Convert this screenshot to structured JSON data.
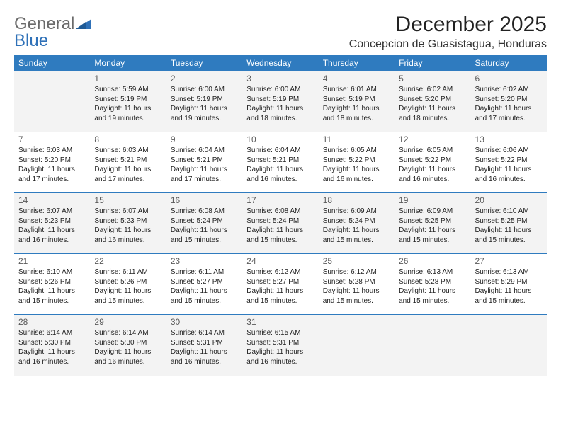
{
  "logo": {
    "part1": "General",
    "part2": "Blue"
  },
  "title": "December 2025",
  "location": "Concepcion de Guasistagua, Honduras",
  "colors": {
    "header_bg": "#2f7bbf",
    "header_text": "#ffffff",
    "row_alt_bg": "#f3f3f3",
    "border": "#2f7bbf",
    "logo_gray": "#6a6a6a",
    "logo_blue": "#2f71b8"
  },
  "day_headers": [
    "Sunday",
    "Monday",
    "Tuesday",
    "Wednesday",
    "Thursday",
    "Friday",
    "Saturday"
  ],
  "weeks": [
    [
      null,
      {
        "n": "1",
        "sunrise": "Sunrise: 5:59 AM",
        "sunset": "Sunset: 5:19 PM",
        "day": "Daylight: 11 hours and 19 minutes."
      },
      {
        "n": "2",
        "sunrise": "Sunrise: 6:00 AM",
        "sunset": "Sunset: 5:19 PM",
        "day": "Daylight: 11 hours and 19 minutes."
      },
      {
        "n": "3",
        "sunrise": "Sunrise: 6:00 AM",
        "sunset": "Sunset: 5:19 PM",
        "day": "Daylight: 11 hours and 18 minutes."
      },
      {
        "n": "4",
        "sunrise": "Sunrise: 6:01 AM",
        "sunset": "Sunset: 5:19 PM",
        "day": "Daylight: 11 hours and 18 minutes."
      },
      {
        "n": "5",
        "sunrise": "Sunrise: 6:02 AM",
        "sunset": "Sunset: 5:20 PM",
        "day": "Daylight: 11 hours and 18 minutes."
      },
      {
        "n": "6",
        "sunrise": "Sunrise: 6:02 AM",
        "sunset": "Sunset: 5:20 PM",
        "day": "Daylight: 11 hours and 17 minutes."
      }
    ],
    [
      {
        "n": "7",
        "sunrise": "Sunrise: 6:03 AM",
        "sunset": "Sunset: 5:20 PM",
        "day": "Daylight: 11 hours and 17 minutes."
      },
      {
        "n": "8",
        "sunrise": "Sunrise: 6:03 AM",
        "sunset": "Sunset: 5:21 PM",
        "day": "Daylight: 11 hours and 17 minutes."
      },
      {
        "n": "9",
        "sunrise": "Sunrise: 6:04 AM",
        "sunset": "Sunset: 5:21 PM",
        "day": "Daylight: 11 hours and 17 minutes."
      },
      {
        "n": "10",
        "sunrise": "Sunrise: 6:04 AM",
        "sunset": "Sunset: 5:21 PM",
        "day": "Daylight: 11 hours and 16 minutes."
      },
      {
        "n": "11",
        "sunrise": "Sunrise: 6:05 AM",
        "sunset": "Sunset: 5:22 PM",
        "day": "Daylight: 11 hours and 16 minutes."
      },
      {
        "n": "12",
        "sunrise": "Sunrise: 6:05 AM",
        "sunset": "Sunset: 5:22 PM",
        "day": "Daylight: 11 hours and 16 minutes."
      },
      {
        "n": "13",
        "sunrise": "Sunrise: 6:06 AM",
        "sunset": "Sunset: 5:22 PM",
        "day": "Daylight: 11 hours and 16 minutes."
      }
    ],
    [
      {
        "n": "14",
        "sunrise": "Sunrise: 6:07 AM",
        "sunset": "Sunset: 5:23 PM",
        "day": "Daylight: 11 hours and 16 minutes."
      },
      {
        "n": "15",
        "sunrise": "Sunrise: 6:07 AM",
        "sunset": "Sunset: 5:23 PM",
        "day": "Daylight: 11 hours and 16 minutes."
      },
      {
        "n": "16",
        "sunrise": "Sunrise: 6:08 AM",
        "sunset": "Sunset: 5:24 PM",
        "day": "Daylight: 11 hours and 15 minutes."
      },
      {
        "n": "17",
        "sunrise": "Sunrise: 6:08 AM",
        "sunset": "Sunset: 5:24 PM",
        "day": "Daylight: 11 hours and 15 minutes."
      },
      {
        "n": "18",
        "sunrise": "Sunrise: 6:09 AM",
        "sunset": "Sunset: 5:24 PM",
        "day": "Daylight: 11 hours and 15 minutes."
      },
      {
        "n": "19",
        "sunrise": "Sunrise: 6:09 AM",
        "sunset": "Sunset: 5:25 PM",
        "day": "Daylight: 11 hours and 15 minutes."
      },
      {
        "n": "20",
        "sunrise": "Sunrise: 6:10 AM",
        "sunset": "Sunset: 5:25 PM",
        "day": "Daylight: 11 hours and 15 minutes."
      }
    ],
    [
      {
        "n": "21",
        "sunrise": "Sunrise: 6:10 AM",
        "sunset": "Sunset: 5:26 PM",
        "day": "Daylight: 11 hours and 15 minutes."
      },
      {
        "n": "22",
        "sunrise": "Sunrise: 6:11 AM",
        "sunset": "Sunset: 5:26 PM",
        "day": "Daylight: 11 hours and 15 minutes."
      },
      {
        "n": "23",
        "sunrise": "Sunrise: 6:11 AM",
        "sunset": "Sunset: 5:27 PM",
        "day": "Daylight: 11 hours and 15 minutes."
      },
      {
        "n": "24",
        "sunrise": "Sunrise: 6:12 AM",
        "sunset": "Sunset: 5:27 PM",
        "day": "Daylight: 11 hours and 15 minutes."
      },
      {
        "n": "25",
        "sunrise": "Sunrise: 6:12 AM",
        "sunset": "Sunset: 5:28 PM",
        "day": "Daylight: 11 hours and 15 minutes."
      },
      {
        "n": "26",
        "sunrise": "Sunrise: 6:13 AM",
        "sunset": "Sunset: 5:28 PM",
        "day": "Daylight: 11 hours and 15 minutes."
      },
      {
        "n": "27",
        "sunrise": "Sunrise: 6:13 AM",
        "sunset": "Sunset: 5:29 PM",
        "day": "Daylight: 11 hours and 15 minutes."
      }
    ],
    [
      {
        "n": "28",
        "sunrise": "Sunrise: 6:14 AM",
        "sunset": "Sunset: 5:30 PM",
        "day": "Daylight: 11 hours and 16 minutes."
      },
      {
        "n": "29",
        "sunrise": "Sunrise: 6:14 AM",
        "sunset": "Sunset: 5:30 PM",
        "day": "Daylight: 11 hours and 16 minutes."
      },
      {
        "n": "30",
        "sunrise": "Sunrise: 6:14 AM",
        "sunset": "Sunset: 5:31 PM",
        "day": "Daylight: 11 hours and 16 minutes."
      },
      {
        "n": "31",
        "sunrise": "Sunrise: 6:15 AM",
        "sunset": "Sunset: 5:31 PM",
        "day": "Daylight: 11 hours and 16 minutes."
      },
      null,
      null,
      null
    ]
  ]
}
